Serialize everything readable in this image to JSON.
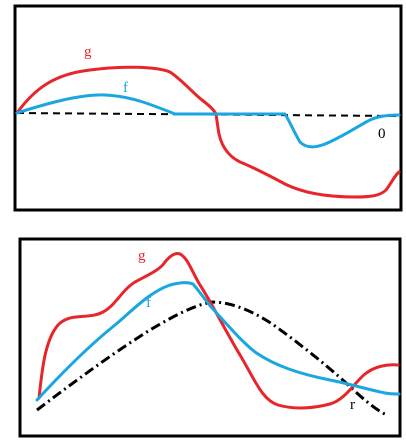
{
  "colors": {
    "g_curve": "#e8252b",
    "f_curve": "#1aa6e0",
    "reference": "#000000",
    "frame": "#000000",
    "background": "#ffffff"
  },
  "top_panel": {
    "label_g": "g",
    "label_f": "f",
    "label_zero": "0"
  },
  "bottom_panel": {
    "label_g": "g",
    "label_f": "f",
    "label_r": "r"
  }
}
